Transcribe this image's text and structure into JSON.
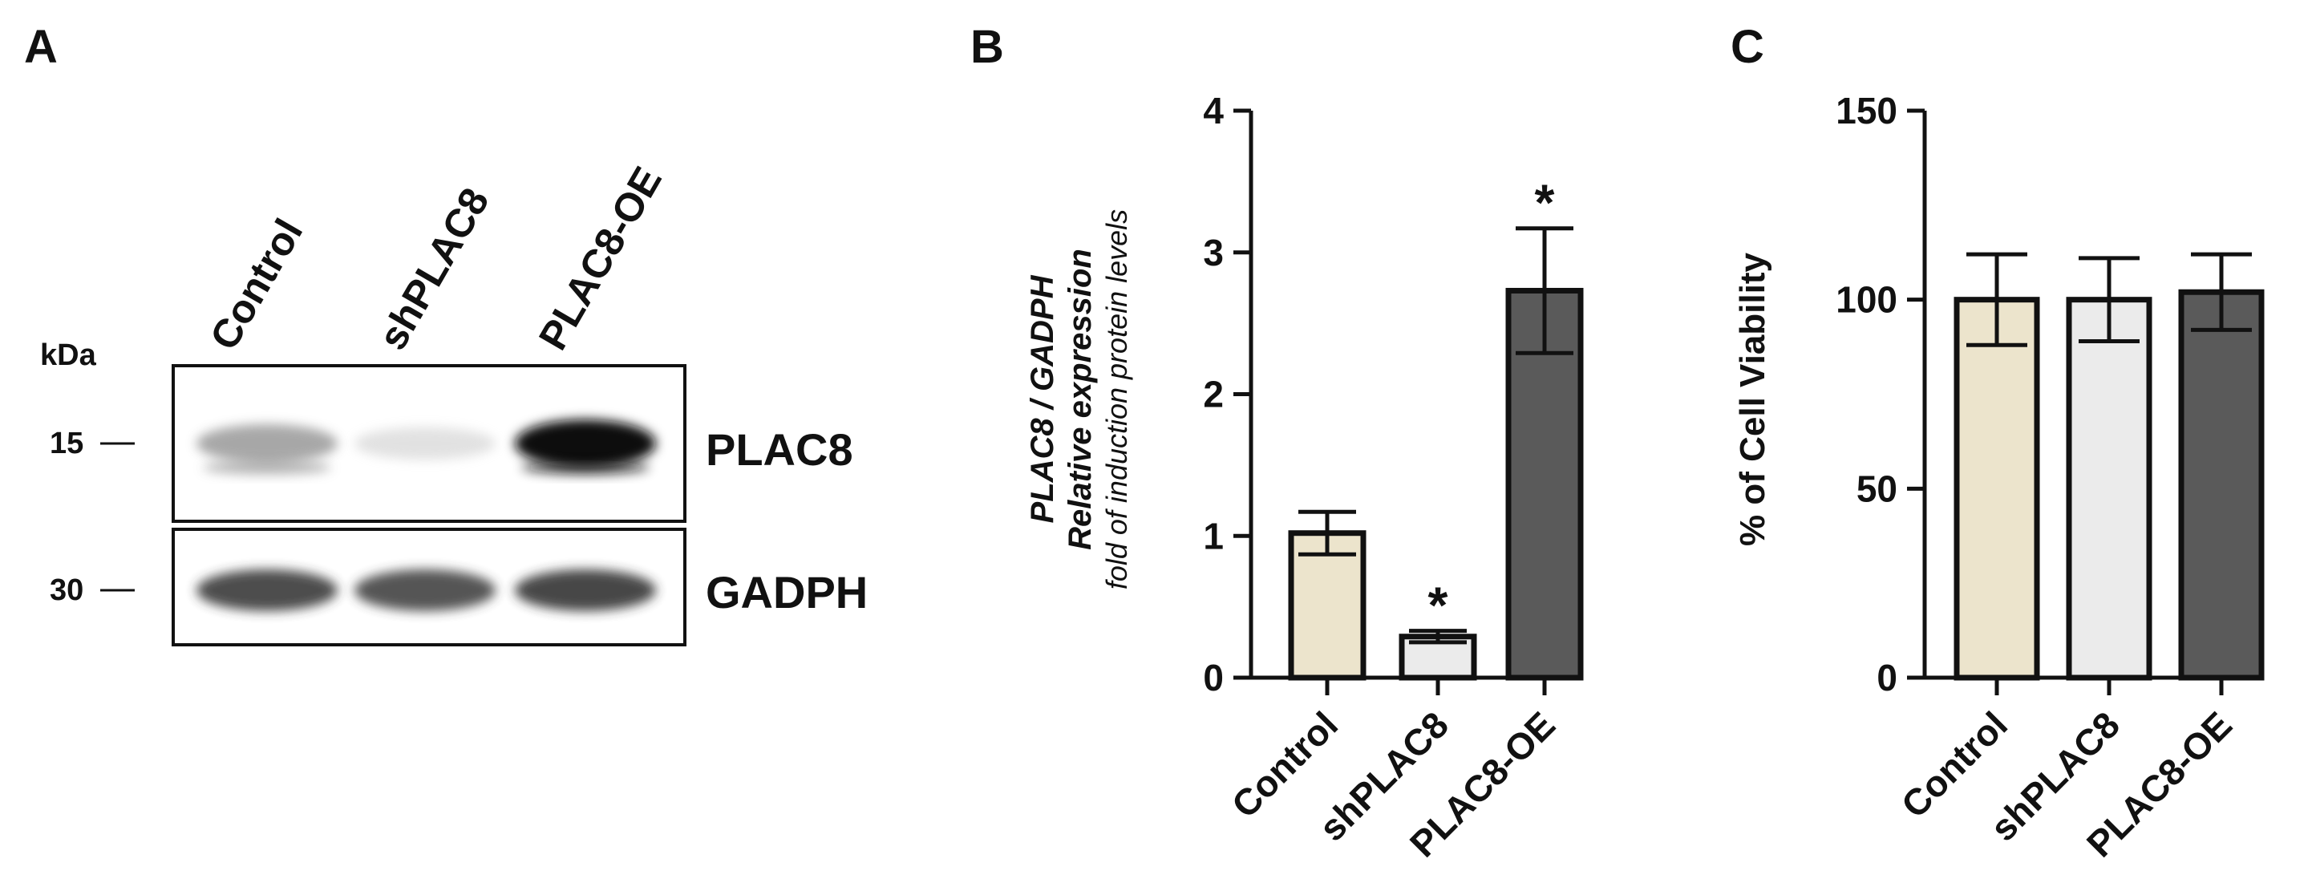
{
  "panels": {
    "a": {
      "letter": "A"
    },
    "b": {
      "letter": "B"
    },
    "c": {
      "letter": "C"
    }
  },
  "blot": {
    "lanes": [
      "Control",
      "shPLAC8",
      "PLAC8-OE"
    ],
    "unit_label": "kDa",
    "markers": [
      "15",
      "30"
    ],
    "bands": [
      {
        "label": "PLAC8",
        "intensities": [
          0.5,
          0.18,
          1.0
        ]
      },
      {
        "label": "GADPH",
        "intensities": [
          0.82,
          0.8,
          0.84
        ]
      }
    ]
  },
  "colors": {
    "Control": "#ece4cc",
    "shPLAC8": "#ebebeb",
    "PLAC8-OE": "#5a5a5a",
    "axis": "#111111"
  },
  "chart_data": [
    {
      "id": "B",
      "type": "bar",
      "categories": [
        "Control",
        "shPLAC8",
        "PLAC8-OE"
      ],
      "values": [
        1.02,
        0.29,
        2.73
      ],
      "errors": [
        0.15,
        0.04,
        0.44
      ],
      "significance": [
        "",
        "*",
        "*"
      ],
      "ylabel_lines": [
        "PLAC8 / GADPH",
        "Relative expression",
        "fold of induction protein levels"
      ],
      "ylim": [
        0,
        4
      ],
      "yticks": [
        0,
        1,
        2,
        3,
        4
      ],
      "grid": false
    },
    {
      "id": "C",
      "type": "bar",
      "categories": [
        "Control",
        "shPLAC8",
        "PLAC8-OE"
      ],
      "values": [
        100,
        100,
        102
      ],
      "errors": [
        12,
        11,
        10
      ],
      "ylabel": "% of Cell Viability",
      "ylim": [
        0,
        150
      ],
      "yticks": [
        0,
        50,
        100,
        150
      ],
      "grid": false
    }
  ]
}
